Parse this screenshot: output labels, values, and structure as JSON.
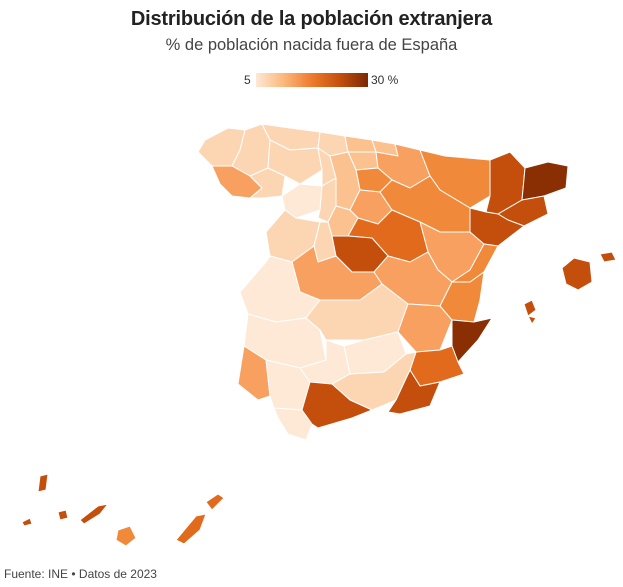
{
  "title": "Distribución de la población extranjera",
  "subtitle": "% de población nacida fuera de España",
  "legend": {
    "min_label": "5",
    "max_label": "30 %",
    "min_value": 5,
    "max_value": 30
  },
  "source": "Fuente: INE • Datos de 2023",
  "colors": {
    "c1": "#fde9d6",
    "c2": "#fcd6b3",
    "c3": "#fbc18f",
    "c4": "#f7a05f",
    "c5": "#f08a3a",
    "c6": "#e26a1c",
    "c7": "#c44f0d",
    "c8": "#8a2e04"
  }
}
